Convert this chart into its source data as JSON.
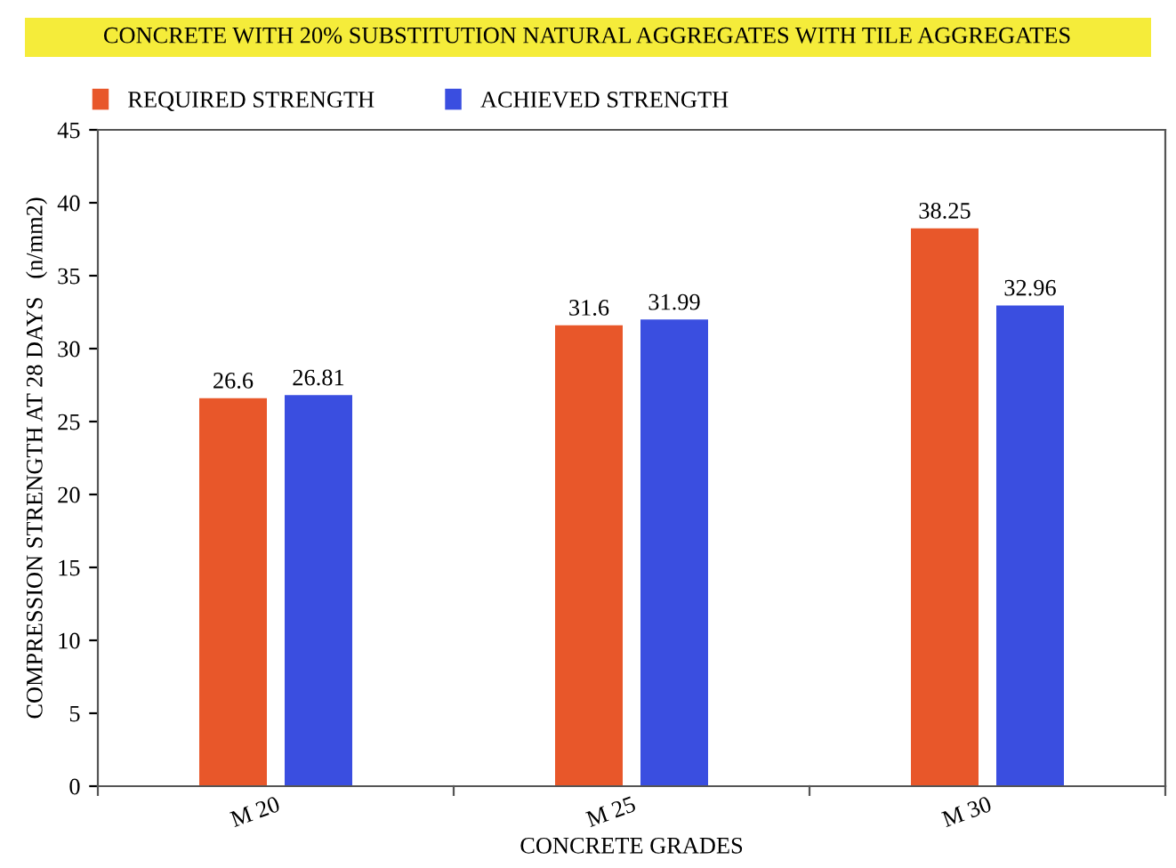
{
  "chart_data": {
    "type": "bar",
    "title": "CONCRETE WITH 20% SUBSTITUTION NATURAL AGGREGATES WITH TILE AGGREGATES",
    "xlabel": "CONCRETE GRADES",
    "ylabel": "COMPRESSION STRENGTH AT 28 DAYS   (n/mm2)",
    "categories": [
      "M 20",
      "M 25",
      "M 30"
    ],
    "series": [
      {
        "name": "REQUIRED STRENGTH",
        "color": "#e8572a",
        "values": [
          26.6,
          31.6,
          38.25
        ]
      },
      {
        "name": "ACHIEVED STRENGTH",
        "color": "#3a4ee0",
        "values": [
          26.81,
          31.99,
          32.96
        ]
      }
    ],
    "ylim": [
      0,
      45
    ],
    "yticks": [
      0,
      5,
      10,
      15,
      20,
      25,
      30,
      35,
      40,
      45
    ],
    "data_labels": true,
    "grid": false,
    "legend": "top left"
  }
}
